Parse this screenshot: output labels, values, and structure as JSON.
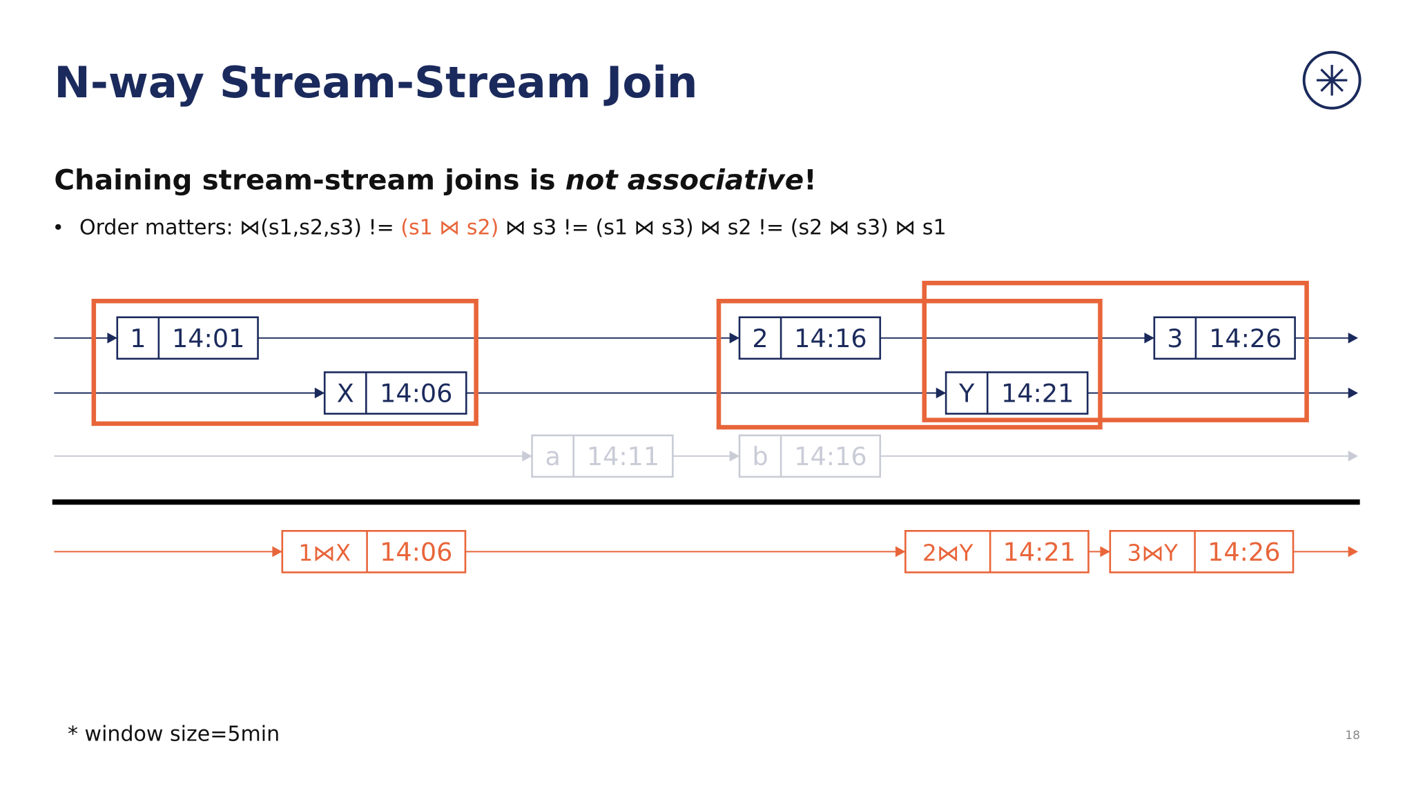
{
  "header": {
    "title": "N-way Stream-Stream Join"
  },
  "subtitle": {
    "before": "Chaining stream-stream joins is ",
    "emphasis": "not associative",
    "after": "!"
  },
  "bullet": {
    "lead": "Order matters: ⋈(s1,s2,s3) != ",
    "highlight": "(s1 ⋈ s2)",
    "rest": " ⋈ s3 != (s1 ⋈ s3) ⋈ s2 != (s2 ⋈ s3) ⋈ s1"
  },
  "streams": [
    {
      "events": [
        {
          "id": "1",
          "time": "14:01"
        },
        {
          "id": "2",
          "time": "14:16"
        },
        {
          "id": "3",
          "time": "14:26"
        }
      ]
    },
    {
      "events": [
        {
          "id": "X",
          "time": "14:06"
        },
        {
          "id": "Y",
          "time": "14:21"
        }
      ]
    },
    {
      "events": [
        {
          "id": "a",
          "time": "14:11"
        },
        {
          "id": "b",
          "time": "14:16"
        }
      ]
    }
  ],
  "output": {
    "events": [
      {
        "id": "1⋈X",
        "time": "14:06"
      },
      {
        "id": "2⋈Y",
        "time": "14:21"
      },
      {
        "id": "3⋈Y",
        "time": "14:26"
      }
    ]
  },
  "footnote": "* window size=5min",
  "page_number": "18"
}
